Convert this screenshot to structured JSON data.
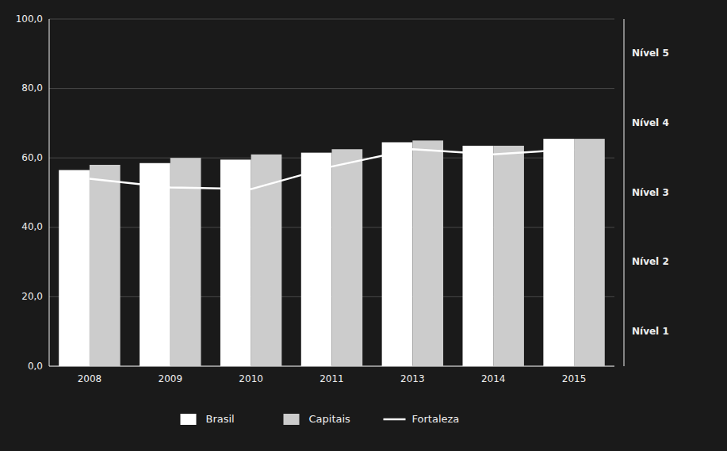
{
  "chart_data": {
    "type": "bar",
    "categories": [
      "2008",
      "2009",
      "2010",
      "2011",
      "2013",
      "2014",
      "2015"
    ],
    "series": [
      {
        "name": "Brasil",
        "type": "bar",
        "color": "#ffffff",
        "values": [
          56.5,
          58.5,
          59.5,
          61.5,
          64.5,
          63.5,
          65.5
        ]
      },
      {
        "name": "Capitais",
        "type": "bar",
        "color": "#cccccc",
        "values": [
          58.0,
          60.0,
          61.0,
          62.5,
          65.0,
          63.5,
          65.5
        ]
      },
      {
        "name": "Fortaleza",
        "type": "line",
        "color": "#ffffff",
        "line_style": "solid",
        "values": [
          54.0,
          51.5,
          51.0,
          57.5,
          62.5,
          61.0,
          62.5
        ]
      }
    ],
    "ylim": [
      0,
      100
    ],
    "yticks": [
      {
        "value": 0,
        "label": "0,0"
      },
      {
        "value": 20,
        "label": "20,0"
      },
      {
        "value": 40,
        "label": "40,0"
      },
      {
        "value": 60,
        "label": "60,0"
      },
      {
        "value": 80,
        "label": "80,0"
      },
      {
        "value": 100,
        "label": "100,0"
      }
    ],
    "annotations": [
      {
        "text": "Nível 1",
        "y": 10
      },
      {
        "text": "Nível 2",
        "y": 30
      },
      {
        "text": "Nível 3",
        "y": 50
      },
      {
        "text": "Nível 4",
        "y": 70
      },
      {
        "text": "Nível 5",
        "y": 90
      }
    ],
    "grid": true,
    "legend": "bottom"
  }
}
